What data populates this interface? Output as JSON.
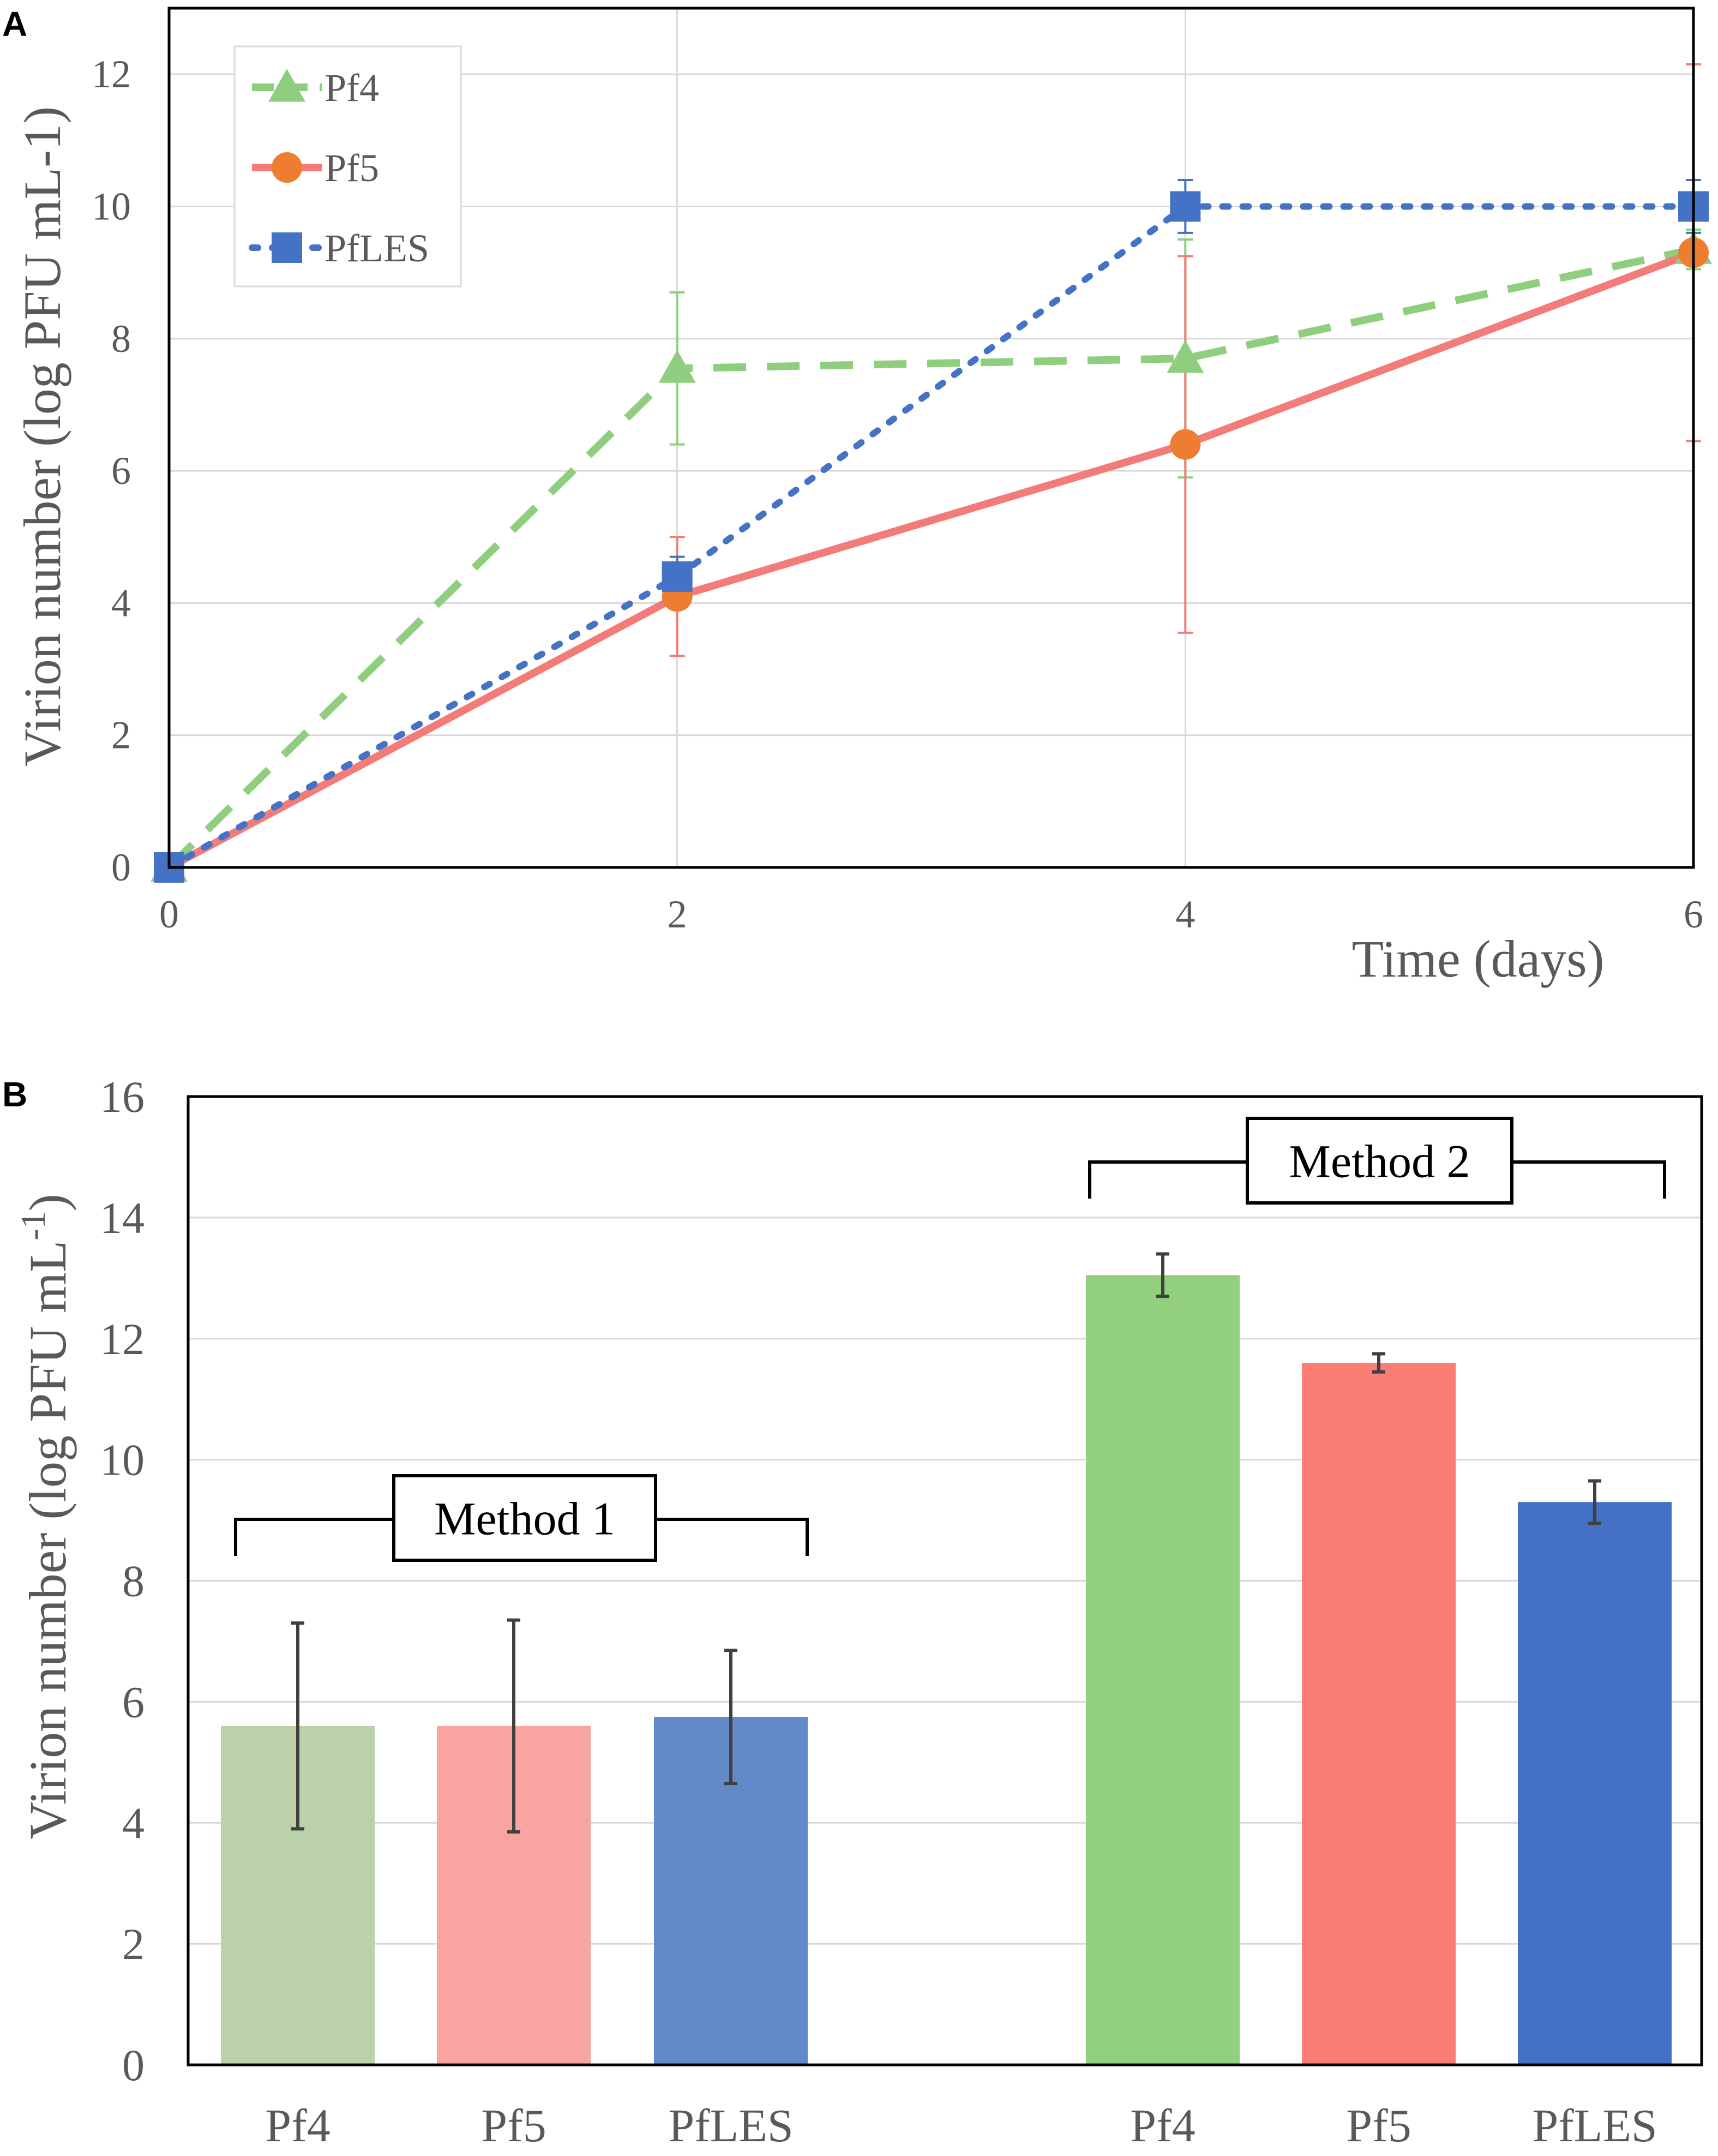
{
  "colors": {
    "pf4": "#8fce7f",
    "pf5": "#f47c78",
    "pfles": "#4472c4",
    "pf5_marker": "#ed7d31",
    "m1_pf4": "#bad1ab",
    "m1_pf5": "#f8a5a1",
    "m1_pfles": "#6289c8",
    "m2_pf4": "#92d07f",
    "m2_pf5": "#fb7e76",
    "m2_pfles": "#4470c6",
    "grid": "#d9d9d9",
    "axis": "#000000",
    "errbar": "#404040",
    "text": "#595959"
  },
  "panels": {
    "a": {
      "label": "A"
    },
    "b": {
      "label": "B"
    }
  },
  "chart_data": [
    {
      "type": "line",
      "panel": "A",
      "title": "",
      "xlabel": "Time (days)",
      "ylabel": "Virion number (log PFU mL-1)",
      "xlim": [
        0,
        6
      ],
      "ylim": [
        0,
        13
      ],
      "xticks": [
        "0",
        "2",
        "4",
        "6"
      ],
      "yticks": [
        "0",
        "2",
        "4",
        "6",
        "8",
        "10",
        "12"
      ],
      "grid": true,
      "legend": "top-left",
      "x": [
        0,
        2,
        4,
        6
      ],
      "series": [
        {
          "name": "Pf4",
          "style": "dashed",
          "marker": "triangle",
          "values": [
            0,
            7.55,
            7.7,
            9.35
          ],
          "errors": [
            0,
            1.15,
            1.8,
            0.3
          ]
        },
        {
          "name": "Pf5",
          "style": "solid",
          "marker": "circle",
          "values": [
            0,
            4.1,
            6.4,
            9.3
          ],
          "errors": [
            0,
            0.9,
            2.85,
            2.85
          ]
        },
        {
          "name": "PfLES",
          "style": "dotted",
          "marker": "square",
          "values": [
            0,
            4.4,
            10.0,
            10.0
          ],
          "errors": [
            0,
            0.3,
            0.4,
            0.4
          ]
        }
      ]
    },
    {
      "type": "bar",
      "panel": "B",
      "title": "",
      "xlabel": "",
      "ylabel": "Virion number (log PFU mL",
      "ylabel_sup": "-1",
      "ylabel_end": ")",
      "ylim": [
        0,
        16
      ],
      "yticks": [
        "0",
        "2",
        "4",
        "6",
        "8",
        "10",
        "12",
        "14",
        "16"
      ],
      "grid": true,
      "groups": [
        {
          "label": "Method 1",
          "categories": [
            "Pf4",
            "Pf5",
            "PfLES"
          ],
          "values": [
            5.6,
            5.6,
            5.75
          ],
          "errors": [
            1.7,
            1.75,
            1.1
          ]
        },
        {
          "label": "Method 2",
          "categories": [
            "Pf4",
            "Pf5",
            "PfLES"
          ],
          "values": [
            13.05,
            11.6,
            9.3
          ],
          "errors": [
            0.35,
            0.15,
            0.35
          ]
        }
      ]
    }
  ]
}
